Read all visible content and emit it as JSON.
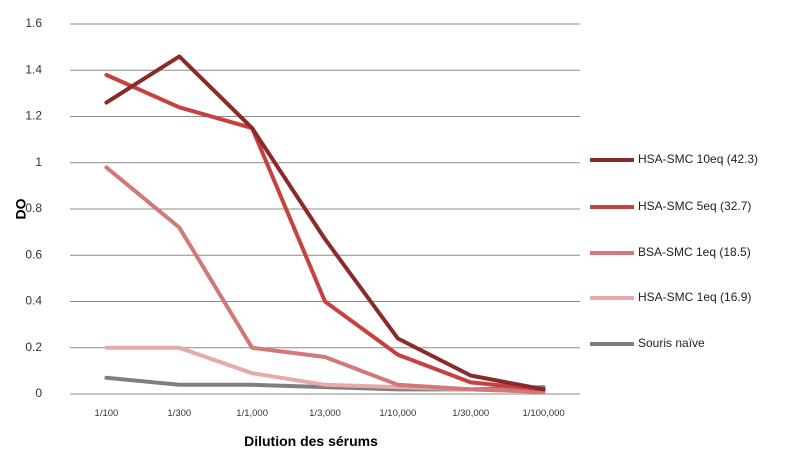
{
  "chart_data": {
    "type": "line",
    "xlabel": "Dilution des sérums",
    "ylabel": "DO",
    "ylim": [
      0,
      1.6
    ],
    "yticks": [
      "0",
      "0.2",
      "0.4",
      "0.6",
      "0.8",
      "1",
      "1.2",
      "1.4",
      "1.6"
    ],
    "categories": [
      "1/100",
      "1/300",
      "1/1,000",
      "1/3,000",
      "1/10,000",
      "1/30,000",
      "1/100,000"
    ],
    "grid": true,
    "legend_position": "right",
    "series": [
      {
        "name": "HSA-SMC 10eq (42.3)",
        "color": "#8b2a2a",
        "values": [
          1.26,
          1.46,
          1.15,
          0.67,
          0.24,
          0.08,
          0.02
        ]
      },
      {
        "name": "HSA-SMC 5eq (32.7)",
        "color": "#c94040",
        "values": [
          1.38,
          1.24,
          1.15,
          0.4,
          0.17,
          0.05,
          0.02
        ]
      },
      {
        "name": "BSA-SMC 1eq (18.5)",
        "color": "#d17878",
        "values": [
          0.98,
          0.72,
          0.2,
          0.16,
          0.04,
          0.02,
          0.01
        ]
      },
      {
        "name": "HSA-SMC 1eq (16.9)",
        "color": "#e6aaaa",
        "values": [
          0.2,
          0.2,
          0.09,
          0.04,
          0.03,
          0.02,
          0.01
        ]
      },
      {
        "name": "Souris naïve",
        "color": "#7f7f7f",
        "values": [
          0.07,
          0.04,
          0.04,
          0.03,
          0.02,
          0.02,
          0.03
        ]
      }
    ]
  }
}
